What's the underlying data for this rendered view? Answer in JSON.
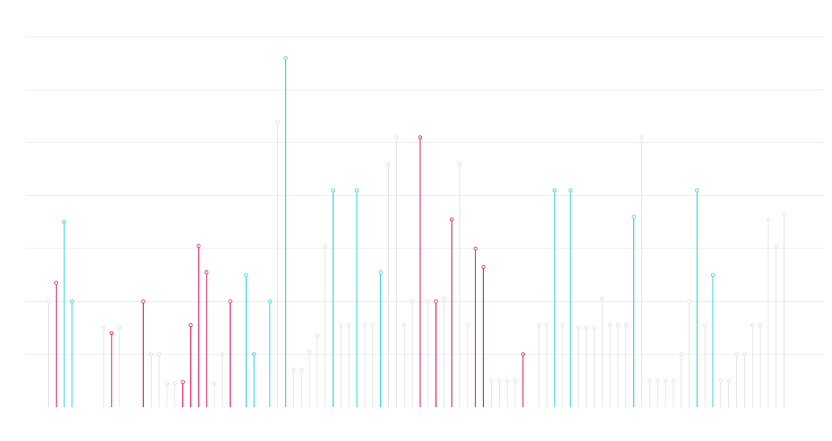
{
  "chart_data": {
    "type": "lollipop",
    "title": "",
    "xlabel": "",
    "ylabel": "",
    "ylim": [
      0,
      7
    ],
    "gridlines": [
      1,
      2,
      3,
      4,
      5,
      6,
      7
    ],
    "grid": true,
    "axis_labels_visible": false,
    "colors": {
      "highlight_a": "#e0306c",
      "highlight_b": "#3fd6e6",
      "muted": "#e2e2e2",
      "grid": "#ececec"
    },
    "points": [
      {
        "x": 1,
        "y": 2.0,
        "group": "muted"
      },
      {
        "x": 2,
        "y": 2.35,
        "group": "highlight_a"
      },
      {
        "x": 3,
        "y": 3.5,
        "group": "highlight_b"
      },
      {
        "x": 4,
        "y": 2.0,
        "group": "highlight_b"
      },
      {
        "x": 8,
        "y": 1.5,
        "group": "muted"
      },
      {
        "x": 9,
        "y": 1.4,
        "group": "highlight_a"
      },
      {
        "x": 10,
        "y": 1.5,
        "group": "muted"
      },
      {
        "x": 13,
        "y": 2.0,
        "group": "highlight_a"
      },
      {
        "x": 14,
        "y": 1.0,
        "group": "muted"
      },
      {
        "x": 15,
        "y": 1.0,
        "group": "muted"
      },
      {
        "x": 16,
        "y": 0.45,
        "group": "muted"
      },
      {
        "x": 17,
        "y": 0.45,
        "group": "muted"
      },
      {
        "x": 18,
        "y": 0.48,
        "group": "highlight_a"
      },
      {
        "x": 19,
        "y": 1.55,
        "group": "highlight_a"
      },
      {
        "x": 20,
        "y": 3.05,
        "group": "highlight_a"
      },
      {
        "x": 21,
        "y": 2.55,
        "group": "highlight_a"
      },
      {
        "x": 22,
        "y": 0.45,
        "group": "muted"
      },
      {
        "x": 23,
        "y": 1.0,
        "group": "muted"
      },
      {
        "x": 24,
        "y": 2.0,
        "group": "highlight_a"
      },
      {
        "x": 26,
        "y": 2.5,
        "group": "highlight_b"
      },
      {
        "x": 27,
        "y": 1.0,
        "group": "highlight_b"
      },
      {
        "x": 29,
        "y": 2.0,
        "group": "highlight_b"
      },
      {
        "x": 30,
        "y": 5.4,
        "group": "muted"
      },
      {
        "x": 31,
        "y": 6.6,
        "group": "highlight_b"
      },
      {
        "x": 32,
        "y": 0.7,
        "group": "muted"
      },
      {
        "x": 33,
        "y": 0.7,
        "group": "muted"
      },
      {
        "x": 34,
        "y": 1.05,
        "group": "muted"
      },
      {
        "x": 35,
        "y": 1.35,
        "group": "muted"
      },
      {
        "x": 36,
        "y": 3.05,
        "group": "muted"
      },
      {
        "x": 37,
        "y": 4.1,
        "group": "highlight_b"
      },
      {
        "x": 38,
        "y": 1.55,
        "group": "muted"
      },
      {
        "x": 39,
        "y": 1.55,
        "group": "muted"
      },
      {
        "x": 40,
        "y": 4.1,
        "group": "highlight_b"
      },
      {
        "x": 41,
        "y": 1.55,
        "group": "muted"
      },
      {
        "x": 42,
        "y": 1.55,
        "group": "muted"
      },
      {
        "x": 43,
        "y": 2.55,
        "group": "highlight_b"
      },
      {
        "x": 44,
        "y": 4.6,
        "group": "muted"
      },
      {
        "x": 45,
        "y": 5.1,
        "group": "muted"
      },
      {
        "x": 46,
        "y": 1.55,
        "group": "muted"
      },
      {
        "x": 47,
        "y": 2.0,
        "group": "muted"
      },
      {
        "x": 48,
        "y": 5.1,
        "group": "highlight_a"
      },
      {
        "x": 49,
        "y": 2.0,
        "group": "muted"
      },
      {
        "x": 50,
        "y": 2.0,
        "group": "highlight_a"
      },
      {
        "x": 51,
        "y": 2.05,
        "group": "muted"
      },
      {
        "x": 52,
        "y": 3.55,
        "group": "highlight_a"
      },
      {
        "x": 53,
        "y": 4.6,
        "group": "muted"
      },
      {
        "x": 54,
        "y": 1.55,
        "group": "muted"
      },
      {
        "x": 55,
        "y": 3.0,
        "group": "highlight_a"
      },
      {
        "x": 56,
        "y": 2.65,
        "group": "highlight_a"
      },
      {
        "x": 57,
        "y": 0.5,
        "group": "muted"
      },
      {
        "x": 58,
        "y": 0.5,
        "group": "muted"
      },
      {
        "x": 59,
        "y": 0.5,
        "group": "muted"
      },
      {
        "x": 60,
        "y": 0.5,
        "group": "muted"
      },
      {
        "x": 61,
        "y": 1.0,
        "group": "highlight_a"
      },
      {
        "x": 63,
        "y": 1.55,
        "group": "muted"
      },
      {
        "x": 64,
        "y": 1.55,
        "group": "muted"
      },
      {
        "x": 65,
        "y": 4.1,
        "group": "highlight_b"
      },
      {
        "x": 66,
        "y": 1.55,
        "group": "muted"
      },
      {
        "x": 67,
        "y": 4.1,
        "group": "highlight_b"
      },
      {
        "x": 68,
        "y": 1.5,
        "group": "muted"
      },
      {
        "x": 69,
        "y": 1.5,
        "group": "muted"
      },
      {
        "x": 70,
        "y": 1.5,
        "group": "muted"
      },
      {
        "x": 71,
        "y": 2.05,
        "group": "muted"
      },
      {
        "x": 72,
        "y": 1.55,
        "group": "muted"
      },
      {
        "x": 73,
        "y": 1.55,
        "group": "muted"
      },
      {
        "x": 74,
        "y": 1.55,
        "group": "muted"
      },
      {
        "x": 75,
        "y": 3.6,
        "group": "highlight_b"
      },
      {
        "x": 76,
        "y": 5.1,
        "group": "muted"
      },
      {
        "x": 77,
        "y": 0.5,
        "group": "muted"
      },
      {
        "x": 78,
        "y": 0.5,
        "group": "muted"
      },
      {
        "x": 79,
        "y": 0.5,
        "group": "muted"
      },
      {
        "x": 80,
        "y": 0.5,
        "group": "muted"
      },
      {
        "x": 81,
        "y": 1.0,
        "group": "muted"
      },
      {
        "x": 82,
        "y": 2.0,
        "group": "muted"
      },
      {
        "x": 83,
        "y": 4.1,
        "group": "highlight_b"
      },
      {
        "x": 84,
        "y": 1.55,
        "group": "muted"
      },
      {
        "x": 85,
        "y": 2.5,
        "group": "highlight_b"
      },
      {
        "x": 86,
        "y": 0.5,
        "group": "muted"
      },
      {
        "x": 87,
        "y": 0.5,
        "group": "muted"
      },
      {
        "x": 88,
        "y": 1.0,
        "group": "muted"
      },
      {
        "x": 89,
        "y": 1.0,
        "group": "muted"
      },
      {
        "x": 90,
        "y": 1.55,
        "group": "muted"
      },
      {
        "x": 91,
        "y": 1.55,
        "group": "muted"
      },
      {
        "x": 92,
        "y": 3.55,
        "group": "muted"
      },
      {
        "x": 93,
        "y": 3.05,
        "group": "muted"
      },
      {
        "x": 94,
        "y": 3.65,
        "group": "muted"
      }
    ]
  }
}
